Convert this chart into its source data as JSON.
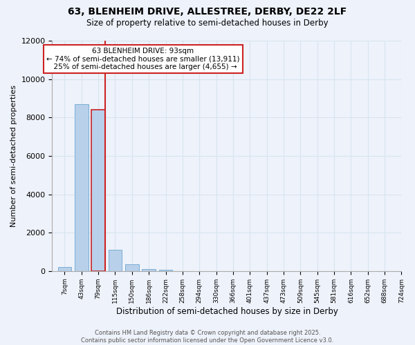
{
  "title_line1": "63, BLENHEIM DRIVE, ALLESTREE, DERBY, DE22 2LF",
  "title_line2": "Size of property relative to semi-detached houses in Derby",
  "xlabel": "Distribution of semi-detached houses by size in Derby",
  "ylabel": "Number of semi-detached properties",
  "property_label": "63 BLENHEIM DRIVE: 93sqm",
  "pct_smaller": 74,
  "count_smaller": 13911,
  "pct_larger": 25,
  "count_larger": 4655,
  "bin_labels": [
    "7sqm",
    "43sqm",
    "79sqm",
    "115sqm",
    "150sqm",
    "186sqm",
    "222sqm",
    "258sqm",
    "294sqm",
    "330sqm",
    "366sqm",
    "401sqm",
    "437sqm",
    "473sqm",
    "509sqm",
    "545sqm",
    "581sqm",
    "616sqm",
    "652sqm",
    "688sqm",
    "724sqm"
  ],
  "bar_values": [
    200,
    8700,
    8400,
    1100,
    350,
    100,
    50,
    0,
    0,
    0,
    0,
    0,
    0,
    0,
    0,
    0,
    0,
    0,
    0,
    0,
    0
  ],
  "bar_color": "#b8d0ea",
  "bar_edge_color": "#7aadd4",
  "highlight_bar_index": 2,
  "highlight_bar_edge_color": "#cc2222",
  "vline_color": "#cc2222",
  "ylim": [
    0,
    12000
  ],
  "yticks": [
    0,
    2000,
    4000,
    6000,
    8000,
    10000,
    12000
  ],
  "grid_color": "#d8e4f0",
  "background_color": "#eef2fa",
  "annotation_box_facecolor": "#ffffff",
  "annotation_box_edgecolor": "#cc2222",
  "footer_line1": "Contains HM Land Registry data © Crown copyright and database right 2025.",
  "footer_line2": "Contains public sector information licensed under the Open Government Licence v3.0."
}
